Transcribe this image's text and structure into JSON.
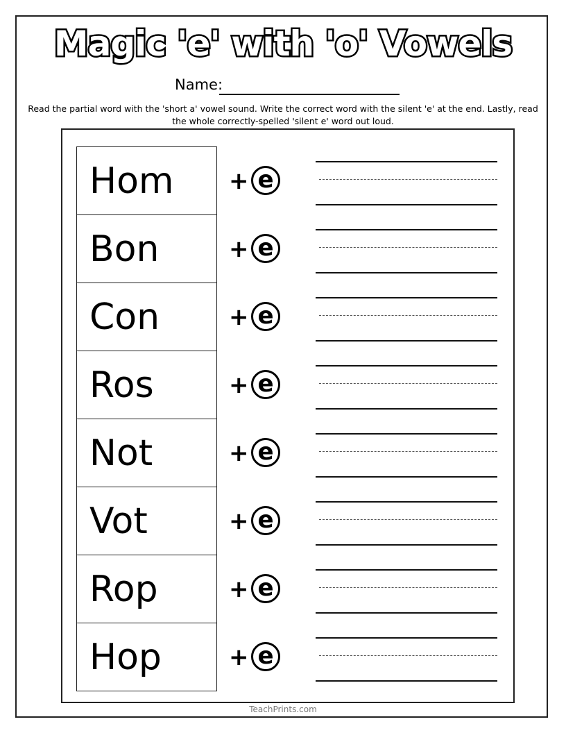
{
  "title": "Magic 'e' with 'o' Vowels",
  "name_label": "Name:",
  "instructions": "Read the partial word with the 'short a' vowel sound. Write the correct word with the silent 'e' at the end. Lastly, read the whole correctly-spelled 'silent e' word out loud.",
  "plus": "+",
  "e_letter": "e",
  "words": [
    "Hom",
    "Bon",
    "Con",
    "Ros",
    "Not",
    "Vot",
    "Rop",
    "Hop"
  ],
  "footer": "TeachPrints.com"
}
